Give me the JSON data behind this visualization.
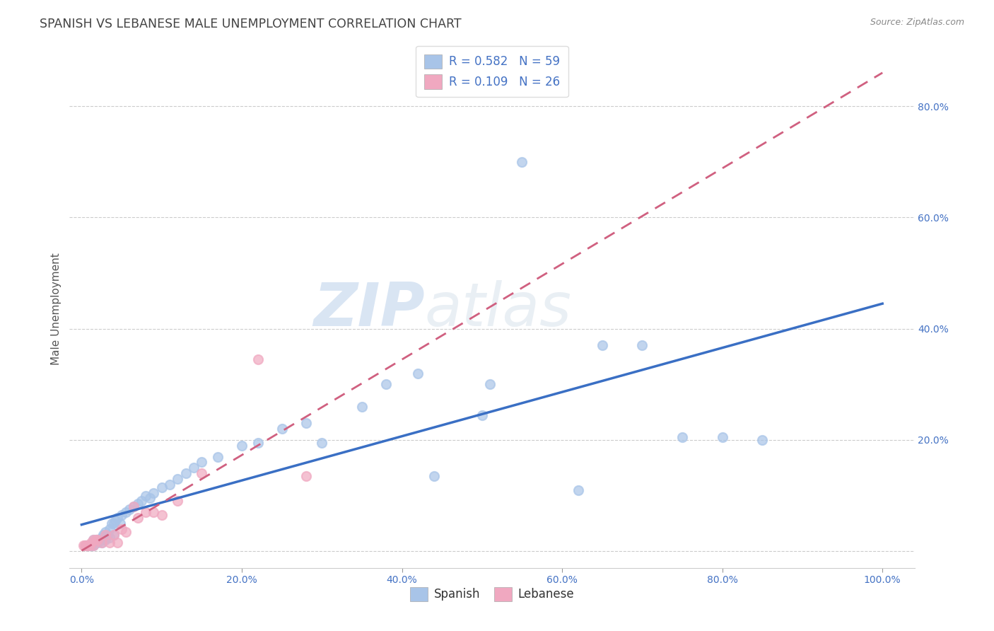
{
  "title": "SPANISH VS LEBANESE MALE UNEMPLOYMENT CORRELATION CHART",
  "source": "Source: ZipAtlas.com",
  "ylabel_label": "Male Unemployment",
  "x_ticks": [
    0.0,
    0.2,
    0.4,
    0.6,
    0.8,
    1.0
  ],
  "x_tick_labels": [
    "0.0%",
    "20.0%",
    "40.0%",
    "60.0%",
    "80.0%",
    "100.0%"
  ],
  "y_ticks": [
    0.0,
    0.2,
    0.4,
    0.6,
    0.8
  ],
  "y_tick_labels": [
    "",
    "20.0%",
    "40.0%",
    "60.0%",
    "80.0%"
  ],
  "xlim": [
    -0.015,
    1.04
  ],
  "ylim": [
    -0.03,
    0.9
  ],
  "spanish_color": "#a8c4e8",
  "lebanese_color": "#f0a8c0",
  "spanish_line_color": "#3a6fc4",
  "lebanese_line_color": "#d06080",
  "legend_r_spanish": "R = 0.582",
  "legend_n_spanish": "N = 59",
  "legend_r_lebanese": "R = 0.109",
  "legend_n_lebanese": "N = 26",
  "watermark_zip": "ZIP",
  "watermark_atlas": "atlas",
  "spanish_points_x": [
    0.005,
    0.008,
    0.01,
    0.012,
    0.015,
    0.015,
    0.018,
    0.02,
    0.02,
    0.022,
    0.025,
    0.025,
    0.027,
    0.028,
    0.03,
    0.03,
    0.032,
    0.035,
    0.035,
    0.038,
    0.04,
    0.04,
    0.042,
    0.045,
    0.048,
    0.05,
    0.055,
    0.06,
    0.065,
    0.07,
    0.075,
    0.08,
    0.085,
    0.09,
    0.1,
    0.11,
    0.12,
    0.13,
    0.14,
    0.15,
    0.17,
    0.2,
    0.22,
    0.25,
    0.28,
    0.3,
    0.35,
    0.38,
    0.42,
    0.44,
    0.5,
    0.51,
    0.55,
    0.62,
    0.65,
    0.7,
    0.75,
    0.8,
    0.85
  ],
  "spanish_points_y": [
    0.01,
    0.01,
    0.01,
    0.01,
    0.02,
    0.01,
    0.02,
    0.02,
    0.015,
    0.02,
    0.025,
    0.015,
    0.03,
    0.02,
    0.035,
    0.02,
    0.03,
    0.04,
    0.025,
    0.05,
    0.05,
    0.03,
    0.055,
    0.06,
    0.05,
    0.065,
    0.07,
    0.075,
    0.08,
    0.085,
    0.09,
    0.1,
    0.095,
    0.105,
    0.115,
    0.12,
    0.13,
    0.14,
    0.15,
    0.16,
    0.17,
    0.19,
    0.195,
    0.22,
    0.23,
    0.195,
    0.26,
    0.3,
    0.32,
    0.135,
    0.245,
    0.3,
    0.7,
    0.11,
    0.37,
    0.37,
    0.205,
    0.205,
    0.2
  ],
  "lebanese_points_x": [
    0.002,
    0.004,
    0.006,
    0.008,
    0.01,
    0.012,
    0.015,
    0.015,
    0.018,
    0.02,
    0.025,
    0.03,
    0.035,
    0.04,
    0.045,
    0.05,
    0.055,
    0.065,
    0.07,
    0.08,
    0.09,
    0.1,
    0.12,
    0.15,
    0.22,
    0.28
  ],
  "lebanese_points_y": [
    0.01,
    0.01,
    0.01,
    0.01,
    0.01,
    0.015,
    0.01,
    0.02,
    0.02,
    0.02,
    0.015,
    0.03,
    0.015,
    0.03,
    0.015,
    0.04,
    0.035,
    0.08,
    0.06,
    0.07,
    0.07,
    0.065,
    0.09,
    0.14,
    0.345,
    0.135
  ],
  "background_color": "#ffffff",
  "grid_color": "#cccccc",
  "title_fontsize": 12.5,
  "axis_label_fontsize": 11,
  "tick_fontsize": 10,
  "legend_fontsize": 12
}
